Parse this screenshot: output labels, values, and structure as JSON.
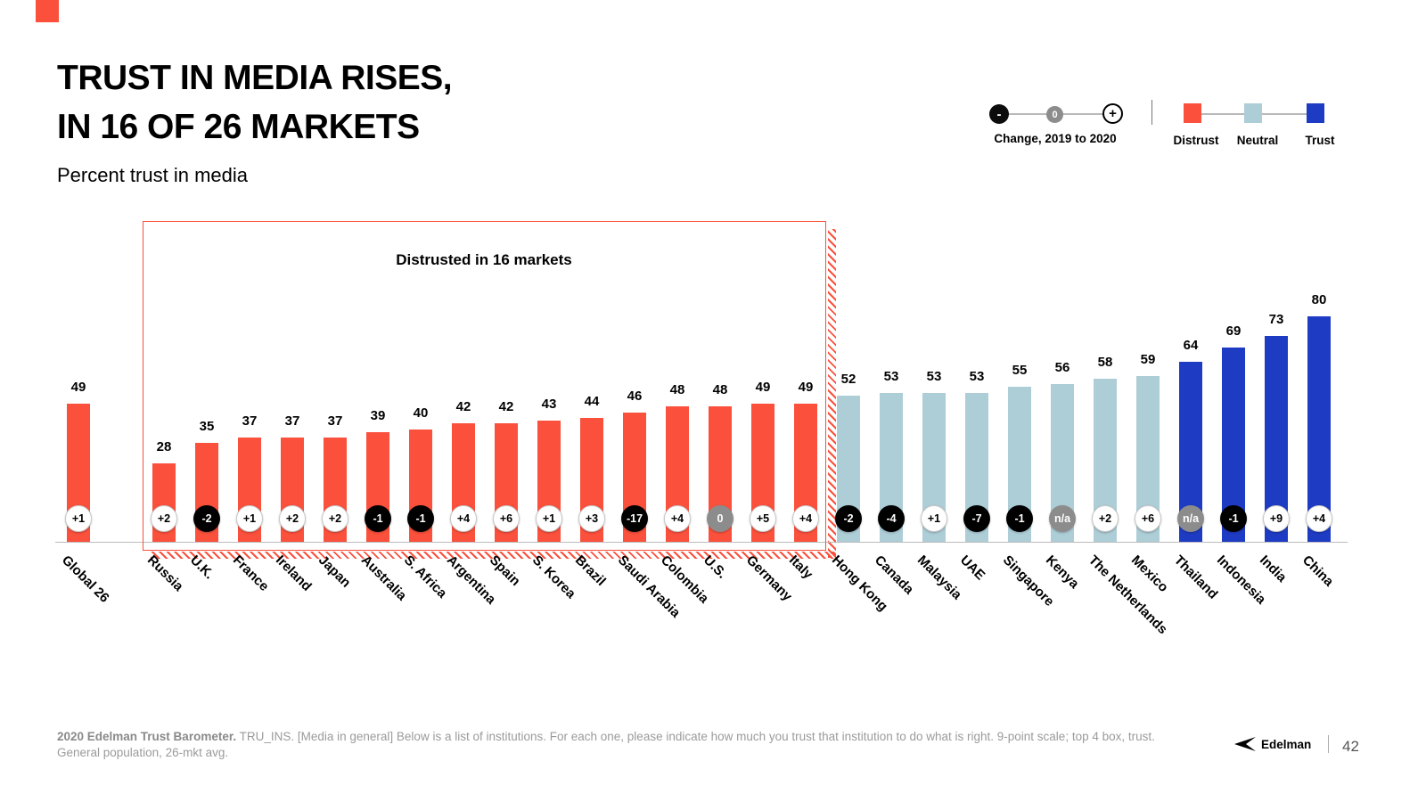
{
  "slide": {
    "title_line1": "TRUST IN MEDIA RISES,",
    "title_line2": "IN 16 OF 26 MARKETS",
    "subtitle": "Percent trust in media",
    "footer_bold": "2020 Edelman Trust Barometer.",
    "footer_rest": " TRU_INS. [Media in general] Below is a list of institutions. For each one, please indicate how much you trust that institution to do what is right. 9-point scale; top 4 box, trust. General population, 26-mkt avg.",
    "logo_text": "Edelman",
    "page_number": "42"
  },
  "legend": {
    "change_label": "Change, 2019 to 2020",
    "minus": "-",
    "zero": "0",
    "plus": "+",
    "distrust_label": "Distrust",
    "neutral_label": "Neutral",
    "trust_label": "Trust"
  },
  "annotation": "Distrusted in 16 markets",
  "colors": {
    "distrust": "#fa503c",
    "neutral": "#adcdd7",
    "trust": "#1e3bc3",
    "badge_negative": "#000000",
    "badge_zero": "#8c8c8c",
    "badge_positive": "#ffffff"
  },
  "chart_data": {
    "type": "bar",
    "title": "Percent trust in media",
    "ylabel": "Percent trust",
    "ylim": [
      0,
      100
    ],
    "grid": false,
    "legend_position": "top-right",
    "bars": [
      {
        "label": "Global 26",
        "value": 49,
        "change": "+1",
        "group": "distrust"
      },
      {
        "label": "Russia",
        "value": 28,
        "change": "+2",
        "group": "distrust"
      },
      {
        "label": "U.K.",
        "value": 35,
        "change": "-2",
        "group": "distrust"
      },
      {
        "label": "France",
        "value": 37,
        "change": "+1",
        "group": "distrust"
      },
      {
        "label": "Ireland",
        "value": 37,
        "change": "+2",
        "group": "distrust"
      },
      {
        "label": "Japan",
        "value": 37,
        "change": "+2",
        "group": "distrust"
      },
      {
        "label": "Australia",
        "value": 39,
        "change": "-1",
        "group": "distrust"
      },
      {
        "label": "S. Africa",
        "value": 40,
        "change": "-1",
        "group": "distrust"
      },
      {
        "label": "Argentina",
        "value": 42,
        "change": "+4",
        "group": "distrust"
      },
      {
        "label": "Spain",
        "value": 42,
        "change": "+6",
        "group": "distrust"
      },
      {
        "label": "S. Korea",
        "value": 43,
        "change": "+1",
        "group": "distrust"
      },
      {
        "label": "Brazil",
        "value": 44,
        "change": "+3",
        "group": "distrust"
      },
      {
        "label": "Saudi Arabia",
        "value": 46,
        "change": "-17",
        "group": "distrust"
      },
      {
        "label": "Colombia",
        "value": 48,
        "change": "+4",
        "group": "distrust"
      },
      {
        "label": "U.S.",
        "value": 48,
        "change": "0",
        "group": "distrust"
      },
      {
        "label": "Germany",
        "value": 49,
        "change": "+5",
        "group": "distrust"
      },
      {
        "label": "Italy",
        "value": 49,
        "change": "+4",
        "group": "distrust"
      },
      {
        "label": "Hong Kong",
        "value": 52,
        "change": "-2",
        "group": "neutral"
      },
      {
        "label": "Canada",
        "value": 53,
        "change": "-4",
        "group": "neutral"
      },
      {
        "label": "Malaysia",
        "value": 53,
        "change": "+1",
        "group": "neutral"
      },
      {
        "label": "UAE",
        "value": 53,
        "change": "-7",
        "group": "neutral"
      },
      {
        "label": "Singapore",
        "value": 55,
        "change": "-1",
        "group": "neutral"
      },
      {
        "label": "Kenya",
        "value": 56,
        "change": "n/a",
        "group": "neutral"
      },
      {
        "label": "The Netherlands",
        "value": 58,
        "change": "+2",
        "group": "neutral"
      },
      {
        "label": "Mexico",
        "value": 59,
        "change": "+6",
        "group": "neutral"
      },
      {
        "label": "Thailand",
        "value": 64,
        "change": "n/a",
        "group": "trust"
      },
      {
        "label": "Indonesia",
        "value": 69,
        "change": "-1",
        "group": "trust"
      },
      {
        "label": "India",
        "value": 73,
        "change": "+9",
        "group": "trust"
      },
      {
        "label": "China",
        "value": 80,
        "change": "+4",
        "group": "trust"
      }
    ]
  }
}
